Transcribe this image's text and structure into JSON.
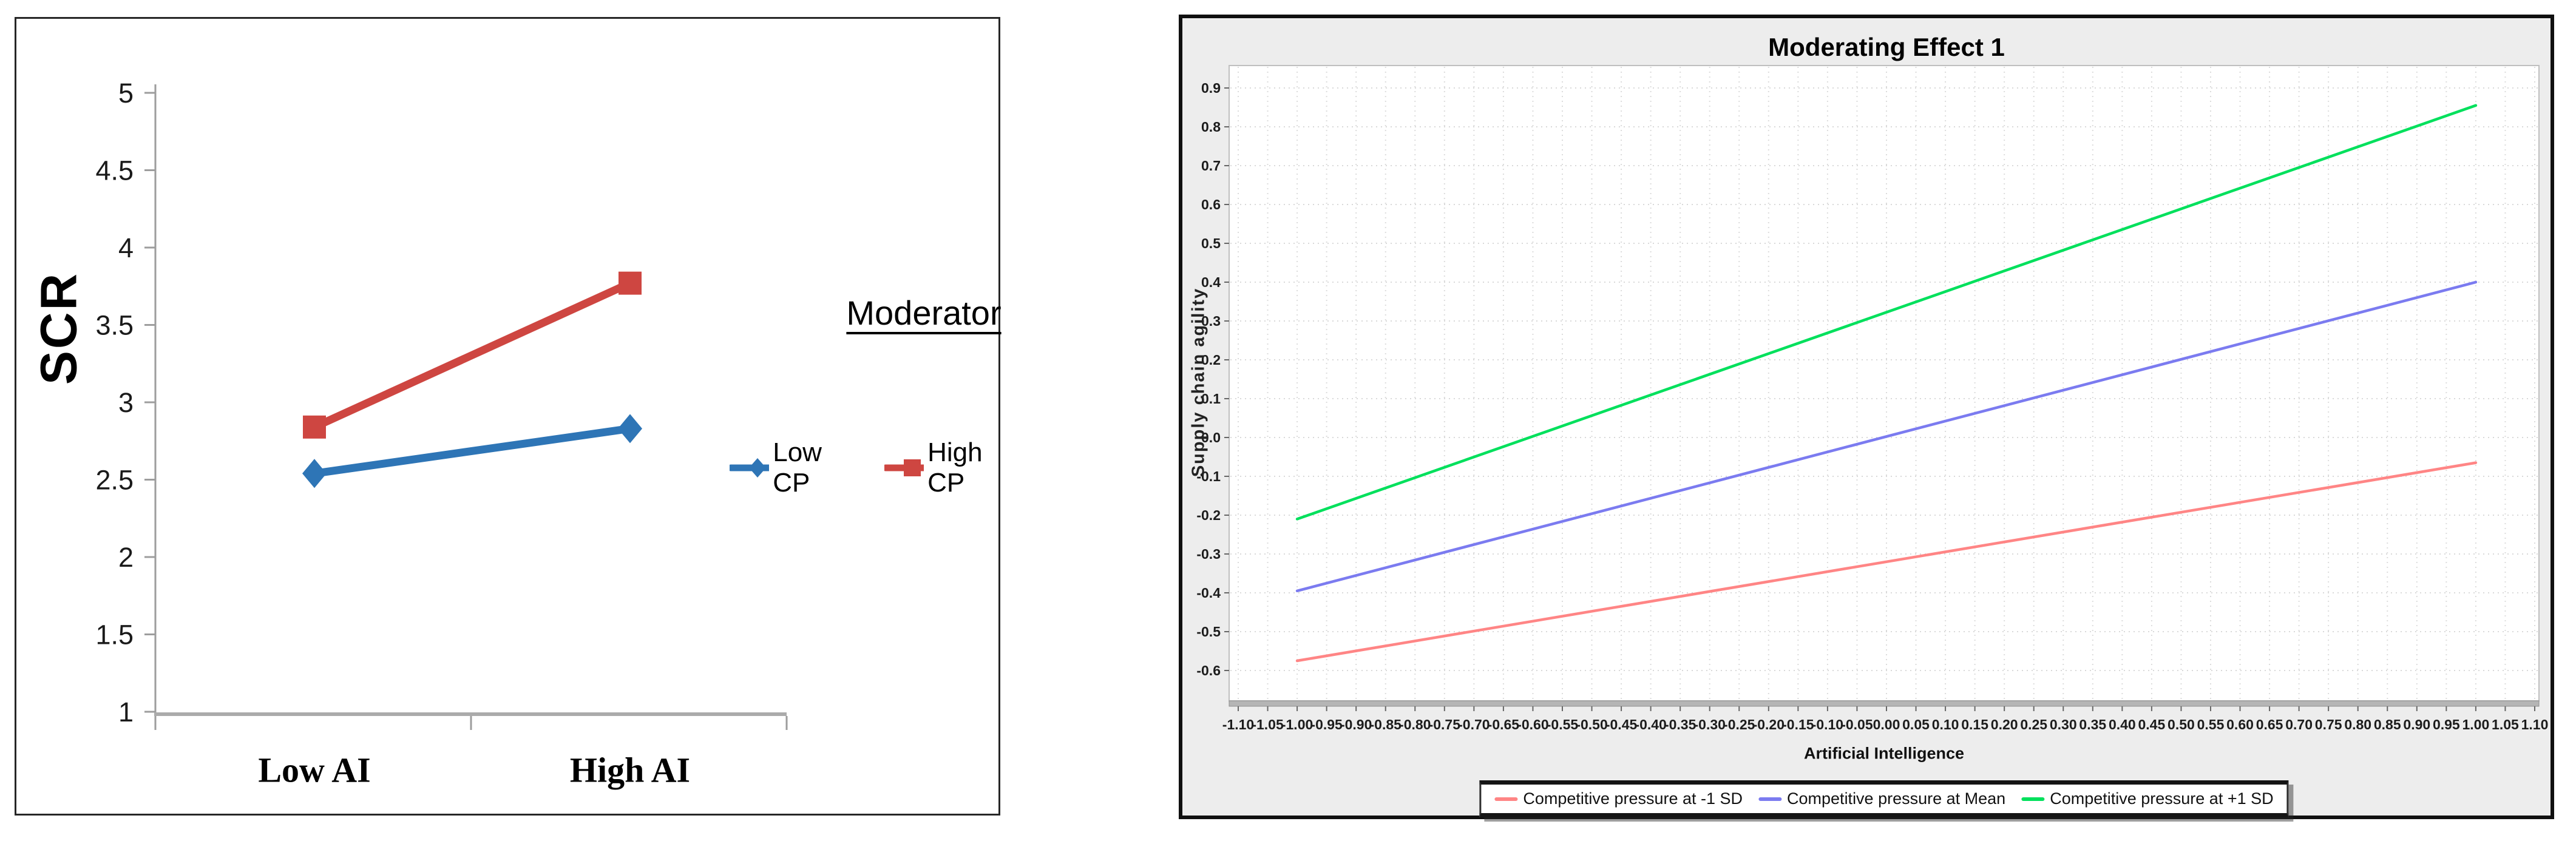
{
  "charts": [
    {
      "type": "line",
      "ylabel": "SCR",
      "legend_title": "Moderator",
      "categories": [
        "Low AI",
        "High AI"
      ],
      "yticks": [
        "5",
        "4.5",
        "4",
        "3.5",
        "3",
        "2.5",
        "2",
        "1.5",
        "1"
      ],
      "ylim": [
        1,
        5
      ],
      "series": [
        {
          "name": "Low CP",
          "color": "#2E75B6",
          "marker": "diamond",
          "values": [
            2.54,
            2.83
          ]
        },
        {
          "name": "High CP",
          "color": "#CE4641",
          "marker": "square",
          "values": [
            2.84,
            3.77
          ]
        }
      ],
      "grid": false,
      "legend_position": "right"
    },
    {
      "type": "line",
      "title": "Moderating Effect 1",
      "xlabel": "Artificial Intelligence",
      "ylabel": "Supply chain agility",
      "xlim": [
        -1.1,
        1.1
      ],
      "ylim": [
        -0.68,
        0.96
      ],
      "xticks": [
        "-1.10",
        "-1.05",
        "-1.00",
        "-0.95",
        "-0.90",
        "-0.85",
        "-0.80",
        "-0.75",
        "-0.70",
        "-0.65",
        "-0.60",
        "-0.55",
        "-0.50",
        "-0.45",
        "-0.40",
        "-0.35",
        "-0.30",
        "-0.25",
        "-0.20",
        "-0.15",
        "-0.10",
        "-0.05",
        "0.00",
        "0.05",
        "0.10",
        "0.15",
        "0.20",
        "0.25",
        "0.30",
        "0.35",
        "0.40",
        "0.45",
        "0.50",
        "0.55",
        "0.60",
        "0.65",
        "0.70",
        "0.75",
        "0.80",
        "0.85",
        "0.90",
        "0.95",
        "1.00",
        "1.05",
        "1.10"
      ],
      "yticks": [
        "0.9",
        "0.8",
        "0.7",
        "0.6",
        "0.5",
        "0.4",
        "0.3",
        "0.2",
        "0.1",
        "0.0",
        "-0.1",
        "-0.2",
        "-0.3",
        "-0.4",
        "-0.5",
        "-0.6"
      ],
      "series": [
        {
          "name": "Competitive pressure at -1 SD",
          "color": "#FF8585",
          "x": [
            -1.0,
            1.0
          ],
          "y": [
            -0.575,
            -0.065
          ]
        },
        {
          "name": "Competitive pressure at Mean",
          "color": "#7B7BF0",
          "x": [
            -1.0,
            1.0
          ],
          "y": [
            -0.395,
            0.4
          ]
        },
        {
          "name": "Competitive pressure at +1 SD",
          "color": "#00E05C",
          "x": [
            -1.0,
            1.0
          ],
          "y": [
            -0.21,
            0.855
          ]
        }
      ],
      "grid": true,
      "legend_position": "bottom"
    }
  ]
}
